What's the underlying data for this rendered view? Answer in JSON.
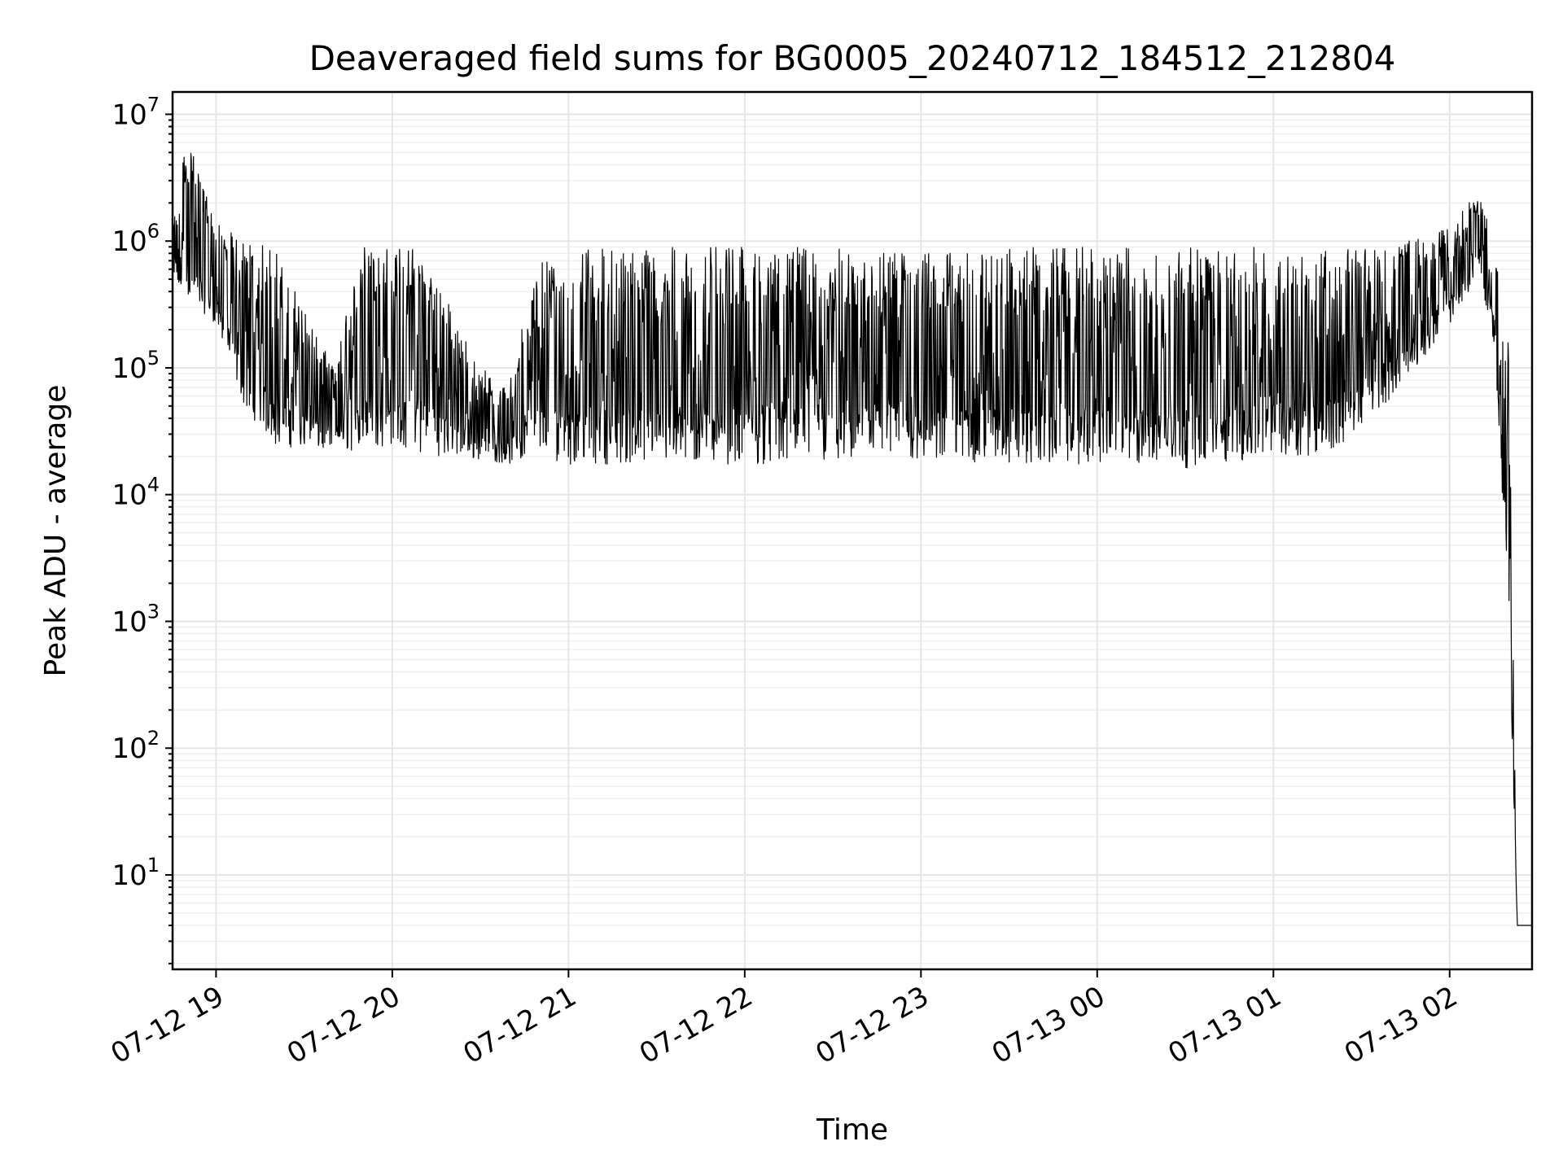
{
  "chart_data": {
    "type": "line",
    "title": "Deaveraged field sums for BG0005_20240712_184512_212804",
    "xlabel": "Time",
    "ylabel": "Peak ADU - average",
    "yscale": "log",
    "grid": true,
    "grid_color": "#e6e6e6",
    "line_color": "#000000",
    "xlim": [
      "2024-07-12 18:45:12",
      "2024-07-13 02:28:04"
    ],
    "ylim": [
      1.8,
      15000000
    ],
    "x_ticks": [
      {
        "value": "2024-07-12 19:00",
        "label": "07-12 19"
      },
      {
        "value": "2024-07-12 20:00",
        "label": "07-12 20"
      },
      {
        "value": "2024-07-12 21:00",
        "label": "07-12 21"
      },
      {
        "value": "2024-07-12 22:00",
        "label": "07-12 22"
      },
      {
        "value": "2024-07-12 23:00",
        "label": "07-12 23"
      },
      {
        "value": "2024-07-13 00:00",
        "label": "07-13 00"
      },
      {
        "value": "2024-07-13 01:00",
        "label": "07-13 01"
      },
      {
        "value": "2024-07-13 02:00",
        "label": "07-13 02"
      }
    ],
    "y_ticks": [
      {
        "value": 10,
        "base": "10",
        "exp": "1"
      },
      {
        "value": 100,
        "base": "10",
        "exp": "2"
      },
      {
        "value": 1000,
        "base": "10",
        "exp": "3"
      },
      {
        "value": 10000,
        "base": "10",
        "exp": "4"
      },
      {
        "value": 100000,
        "base": "10",
        "exp": "5"
      },
      {
        "value": 1000000,
        "base": "10",
        "exp": "6"
      },
      {
        "value": 10000000,
        "base": "10",
        "exp": "7"
      }
    ],
    "series": [
      {
        "x": [
          "2024-07-12 18:45:12",
          "2024-07-12 18:50",
          "2024-07-12 19:00",
          "2024-07-12 19:10",
          "2024-07-12 19:20",
          "2024-07-12 19:30",
          "2024-07-12 19:40",
          "2024-07-12 19:50",
          "2024-07-12 20:00",
          "2024-07-12 20:10",
          "2024-07-12 20:20",
          "2024-07-12 20:30",
          "2024-07-12 20:40",
          "2024-07-12 20:50",
          "2024-07-12 21:00",
          "2024-07-12 21:30",
          "2024-07-12 22:00",
          "2024-07-12 22:30",
          "2024-07-12 23:00",
          "2024-07-12 23:30",
          "2024-07-13 00:00",
          "2024-07-13 00:30",
          "2024-07-13 01:00",
          "2024-07-13 01:20",
          "2024-07-13 01:40",
          "2024-07-13 02:00",
          "2024-07-13 02:10",
          "2024-07-13 02:15",
          "2024-07-13 02:20",
          "2024-07-13 02:23",
          "2024-07-13 02:28:04"
        ],
        "min": [
          400000,
          300000,
          200000,
          40000,
          20000,
          20000,
          20000,
          18000,
          20000,
          17000,
          17000,
          17000,
          16000,
          16000,
          14000,
          14000,
          14000,
          14000,
          15000,
          14000,
          14000,
          13000,
          16000,
          17000,
          50000,
          200000,
          500000,
          150000,
          1000,
          4,
          4
        ],
        "max": [
          1300000,
          7000000,
          1400000,
          1000000,
          900000,
          300000,
          100000,
          950000,
          950000,
          900000,
          300000,
          100000,
          80000,
          800000,
          900000,
          900000,
          900000,
          900000,
          800000,
          900000,
          900000,
          900000,
          900000,
          900000,
          900000,
          1300000,
          2600000,
          900000,
          200000,
          4,
          4
        ]
      }
    ]
  }
}
